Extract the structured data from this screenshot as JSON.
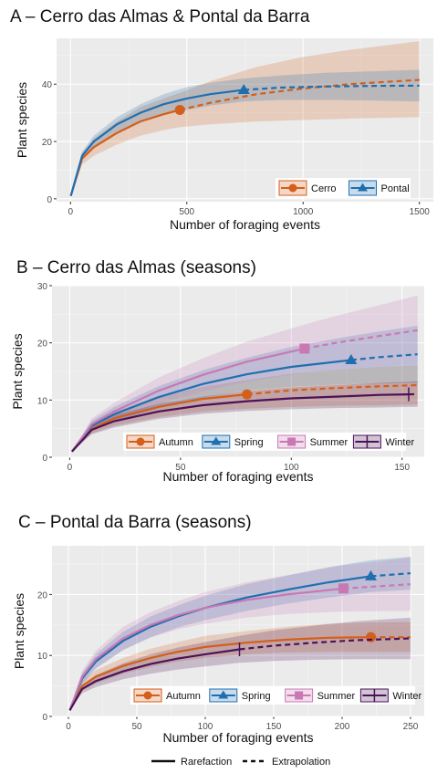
{
  "chart_data": [
    {
      "type": "line",
      "title": "A – Cerro das Almas  & Pontal da Barra",
      "xlabel": "Number of foraging events",
      "ylabel": "Plant species",
      "xlim": [
        -60,
        1560
      ],
      "ylim": [
        -1,
        56
      ],
      "xticks": [
        0,
        500,
        1000,
        1500
      ],
      "yticks": [
        0,
        20,
        40
      ],
      "legend_position": "bottom-right",
      "series": [
        {
          "name": "Cerro",
          "color": "#d35f1a",
          "marker": "circle",
          "observed_n": 470,
          "observed_s": 31,
          "x": [
            1,
            50,
            100,
            200,
            300,
            400,
            470,
            600,
            800,
            1000,
            1200,
            1500
          ],
          "y": [
            1,
            14,
            18,
            23,
            27,
            29.5,
            31,
            33.5,
            36.5,
            38.5,
            40,
            41.5
          ],
          "lower": [
            1,
            12,
            15,
            19,
            22,
            24,
            25,
            26,
            27,
            27.5,
            28,
            28.5
          ],
          "upper": [
            1,
            16,
            21,
            27,
            32,
            35,
            37,
            41,
            46,
            49.5,
            52,
            55
          ]
        },
        {
          "name": "Pontal",
          "color": "#1f6fb0",
          "marker": "triangle",
          "observed_n": 745,
          "observed_s": 38,
          "x": [
            1,
            50,
            100,
            200,
            300,
            400,
            500,
            600,
            745,
            900,
            1100,
            1300,
            1500
          ],
          "y": [
            1,
            15,
            20,
            26,
            30,
            33,
            35,
            36.5,
            38,
            38.8,
            39.2,
            39.4,
            39.5
          ],
          "lower": [
            1,
            13.5,
            18,
            23.5,
            27,
            29.5,
            31,
            32.5,
            34,
            34.5,
            34.5,
            34.3,
            34
          ],
          "upper": [
            1,
            16.5,
            22,
            28.5,
            33,
            36.5,
            39,
            40.5,
            42,
            43,
            44,
            44.5,
            45
          ]
        }
      ]
    },
    {
      "type": "line",
      "title": "B – Cerro das Almas  (seasons)",
      "xlabel": "Number of foraging events",
      "ylabel": "Plant species",
      "xlim": [
        -8,
        160
      ],
      "ylim": [
        0,
        30
      ],
      "xticks": [
        0,
        50,
        100,
        150
      ],
      "yticks": [
        0,
        10,
        20,
        30
      ],
      "legend_position": "bottom",
      "series": [
        {
          "name": "Autumn",
          "color": "#d35f1a",
          "marker": "circle",
          "observed_n": 80,
          "observed_s": 11,
          "x": [
            1,
            10,
            20,
            40,
            60,
            80,
            100,
            120,
            140,
            157
          ],
          "y": [
            1,
            5,
            6.8,
            8.8,
            10.2,
            11,
            11.7,
            12.1,
            12.4,
            12.6
          ],
          "lower": [
            1,
            4.2,
            5.5,
            7,
            8,
            8.5,
            8.8,
            9,
            9.1,
            9.2
          ],
          "upper": [
            1,
            5.8,
            8,
            10.5,
            12.3,
            13.5,
            14.6,
            15.3,
            15.8,
            16.1
          ]
        },
        {
          "name": "Spring",
          "color": "#1f6fb0",
          "marker": "triangle",
          "observed_n": 127,
          "observed_s": 17,
          "x": [
            1,
            10,
            20,
            40,
            60,
            80,
            100,
            127,
            140,
            157
          ],
          "y": [
            1,
            5.5,
            7.5,
            10.5,
            12.8,
            14.5,
            15.8,
            17,
            17.5,
            18
          ],
          "lower": [
            1,
            4.6,
            6.2,
            8.6,
            10.4,
            11.6,
            12.3,
            12.8,
            12.9,
            13
          ],
          "upper": [
            1,
            6.4,
            8.8,
            12.4,
            15.2,
            17.4,
            19.3,
            21.2,
            22,
            23
          ]
        },
        {
          "name": "Summer",
          "color": "#c879b4",
          "marker": "square",
          "observed_n": 106,
          "observed_s": 19,
          "x": [
            1,
            10,
            20,
            40,
            60,
            80,
            106,
            120,
            140,
            157
          ],
          "y": [
            1,
            5.8,
            8,
            11.6,
            14.4,
            16.7,
            19,
            20,
            21.2,
            22.2
          ],
          "lower": [
            1,
            4.8,
            6.5,
            9.3,
            11.5,
            13.2,
            14.8,
            15.3,
            15.8,
            16.2
          ],
          "upper": [
            1,
            6.8,
            9.5,
            13.9,
            17.3,
            20.2,
            23.2,
            24.7,
            26.6,
            28.3
          ]
        },
        {
          "name": "Winter",
          "color": "#4b1258",
          "marker": "bar",
          "observed_n": 153,
          "observed_s": 11,
          "x": [
            1,
            10,
            20,
            40,
            60,
            80,
            100,
            120,
            140,
            153,
            157
          ],
          "y": [
            1,
            4.8,
            6.3,
            8,
            9.1,
            9.8,
            10.3,
            10.6,
            10.9,
            11,
            11.05
          ],
          "lower": [
            1,
            4,
            5.2,
            6.7,
            7.6,
            8.1,
            8.4,
            8.6,
            8.7,
            8.8,
            8.8
          ],
          "upper": [
            1,
            5.6,
            7.4,
            9.3,
            10.6,
            11.5,
            12.2,
            12.6,
            13,
            13.2,
            13.3
          ]
        }
      ]
    },
    {
      "type": "line",
      "title": "C – Pontal da Barra (seasons)",
      "xlabel": "Number of foraging events",
      "ylabel": "Plant species",
      "xlim": [
        -12,
        260
      ],
      "ylim": [
        0,
        28
      ],
      "xticks": [
        0,
        50,
        100,
        150,
        200,
        250
      ],
      "yticks": [
        0,
        10,
        20
      ],
      "legend_position": "bottom",
      "series": [
        {
          "name": "Autumn",
          "color": "#d35f1a",
          "marker": "circle",
          "observed_n": 221,
          "observed_s": 13,
          "x": [
            1,
            10,
            20,
            40,
            60,
            80,
            100,
            130,
            160,
            190,
            221,
            250
          ],
          "y": [
            1,
            5,
            6.5,
            8.3,
            9.6,
            10.6,
            11.4,
            12.1,
            12.6,
            12.9,
            13,
            13
          ],
          "lower": [
            1,
            4.2,
            5.4,
            7,
            8.1,
            9,
            9.6,
            10.2,
            10.5,
            10.6,
            10.6,
            10.6
          ],
          "upper": [
            1,
            5.8,
            7.6,
            9.6,
            11.1,
            12.2,
            13.2,
            14,
            14.7,
            15.2,
            15.4,
            15.5
          ]
        },
        {
          "name": "Spring",
          "color": "#1f6fb0",
          "marker": "triangle",
          "observed_n": 221,
          "observed_s": 23,
          "x": [
            1,
            10,
            20,
            40,
            60,
            80,
            100,
            130,
            160,
            190,
            221,
            250
          ],
          "y": [
            1,
            6.2,
            9,
            12.4,
            14.7,
            16.4,
            17.8,
            19.5,
            20.8,
            22,
            23,
            23.5
          ],
          "lower": [
            1,
            5.3,
            7.8,
            10.9,
            13,
            14.6,
            15.8,
            17.3,
            18.5,
            19.5,
            20.4,
            20.8
          ],
          "upper": [
            1,
            7.1,
            10.2,
            13.9,
            16.4,
            18.2,
            19.8,
            21.7,
            23.1,
            24.5,
            25.6,
            26.2
          ]
        },
        {
          "name": "Summer",
          "color": "#c879b4",
          "marker": "square",
          "observed_n": 201,
          "observed_s": 21,
          "x": [
            1,
            10,
            20,
            40,
            60,
            80,
            100,
            130,
            160,
            201,
            230,
            250
          ],
          "y": [
            1,
            6.5,
            9.4,
            12.8,
            15,
            16.6,
            17.8,
            19.1,
            20,
            21,
            21.4,
            21.7
          ],
          "lower": [
            1,
            5.5,
            8,
            10.9,
            12.9,
            14.3,
            15.2,
            16.2,
            16.8,
            17.2,
            17.3,
            17.3
          ],
          "upper": [
            1,
            7.5,
            10.8,
            14.7,
            17.1,
            18.9,
            20.4,
            22,
            23.2,
            24.8,
            25.5,
            26.1
          ]
        },
        {
          "name": "Winter",
          "color": "#4b1258",
          "marker": "bar",
          "observed_n": 125,
          "observed_s": 11,
          "x": [
            1,
            10,
            20,
            40,
            60,
            80,
            100,
            125,
            150,
            180,
            210,
            250
          ],
          "y": [
            1,
            4.5,
            5.8,
            7.4,
            8.6,
            9.5,
            10.2,
            11,
            11.6,
            12.1,
            12.5,
            12.8
          ],
          "lower": [
            1,
            3.8,
            4.8,
            6.1,
            7,
            7.7,
            8.2,
            8.8,
            9.1,
            9.3,
            9.4,
            9.4
          ],
          "upper": [
            1,
            5.2,
            6.8,
            8.7,
            10.2,
            11.3,
            12.2,
            13.2,
            14.1,
            14.9,
            15.6,
            16.2
          ]
        }
      ]
    }
  ],
  "footer_legend": {
    "rarefaction_label": "Rarefaction",
    "extrapolation_label": "Extrapolation"
  }
}
